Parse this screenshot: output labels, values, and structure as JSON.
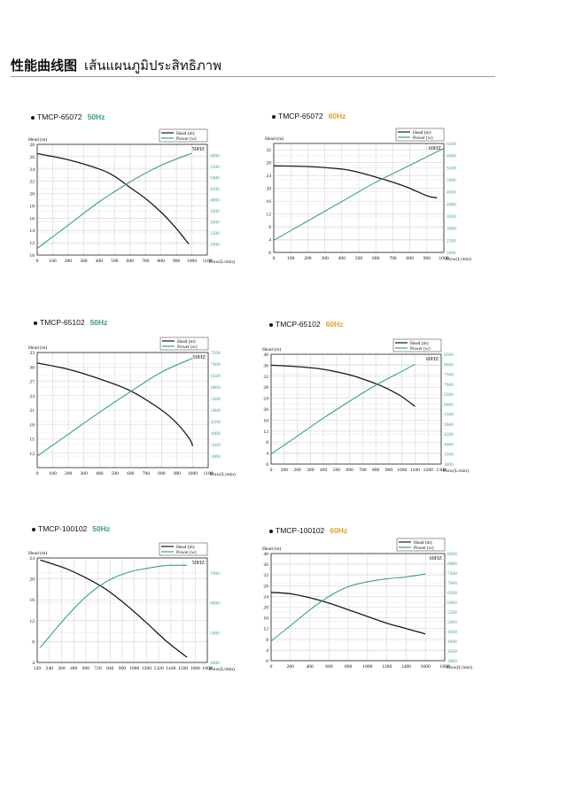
{
  "page": {
    "title_cn": "性能曲线图",
    "title_th": "เส้นแผนภูมิประสิทธิภาพ"
  },
  "colors": {
    "head": "#1a1a1a",
    "power": "#3a9e94",
    "hz50": "#3a9e78",
    "hz60": "#e3a02b",
    "grid": "#d4d4d4"
  },
  "chart_data": [
    {
      "type": "line",
      "model": "TMCP-65072",
      "freq": "50Hz",
      "hz_color": "#3a9e78",
      "freq_box": "50HZ",
      "xlabel": "Flow(L/min)",
      "ylabel": "Head (m)",
      "legend": [
        "Head (m)",
        "Power (w)"
      ],
      "xlim": [
        0,
        1100
      ],
      "xticks": [
        0,
        100,
        200,
        300,
        400,
        500,
        600,
        700,
        800,
        900,
        1000,
        1100
      ],
      "ylim": [
        10,
        28
      ],
      "yticks": [
        10,
        12,
        14,
        16,
        18,
        20,
        22,
        24,
        26,
        28
      ],
      "y2lim": [
        1500,
        6500
      ],
      "y2ticks": [
        2000,
        2500,
        3000,
        3500,
        4000,
        4500,
        5000,
        5500,
        6000
      ],
      "series": [
        {
          "name": "Head (m)",
          "axis": "left",
          "x": [
            0,
            200,
            400,
            500,
            600,
            700,
            800,
            900,
            980
          ],
          "y": [
            26.5,
            25.5,
            24,
            22.8,
            21,
            19.2,
            17,
            14.3,
            11.8
          ]
        },
        {
          "name": "Power (w)",
          "axis": "right",
          "x": [
            0,
            200,
            400,
            600,
            800,
            1000
          ],
          "y": [
            1800,
            2850,
            3900,
            4800,
            5550,
            6100
          ]
        }
      ]
    },
    {
      "type": "line",
      "model": "TMCP-65072",
      "freq": "60Hz",
      "hz_color": "#e3a02b",
      "freq_box": "60HZ",
      "xlabel": "Flow(L/min)",
      "ylabel": "Head (m)",
      "legend": [
        "Head (m)",
        "Power (w)"
      ],
      "xlim": [
        0,
        1000
      ],
      "xticks": [
        0,
        100,
        200,
        300,
        400,
        500,
        600,
        700,
        800,
        900,
        1000
      ],
      "ylim": [
        0,
        34
      ],
      "yticks": [
        0,
        4,
        8,
        12,
        16,
        20,
        24,
        28,
        32
      ],
      "y2lim": [
        2000,
        6500
      ],
      "y2ticks": [
        2000,
        2500,
        3000,
        3500,
        4000,
        4500,
        5000,
        5500,
        6000,
        6500
      ],
      "series": [
        {
          "name": "Head (m)",
          "axis": "left",
          "x": [
            0,
            200,
            400,
            500,
            600,
            700,
            800,
            900,
            960
          ],
          "y": [
            27,
            26.8,
            26,
            25,
            23.5,
            21.9,
            20,
            17.7,
            17
          ]
        },
        {
          "name": "Power (w)",
          "axis": "right",
          "x": [
            0,
            200,
            400,
            600,
            800,
            1000
          ],
          "y": [
            2500,
            3300,
            4100,
            4900,
            5600,
            6300
          ]
        }
      ]
    },
    {
      "type": "line",
      "model": "TMCP-65102",
      "freq": "50Hz",
      "hz_color": "#3a9e78",
      "freq_box": "50HZ",
      "xlabel": "Flow(L/min)",
      "ylabel": "Head (m)",
      "legend": [
        "Head (m)",
        "Power (w)"
      ],
      "xlim": [
        0,
        1100
      ],
      "xticks": [
        0,
        100,
        200,
        300,
        400,
        500,
        600,
        700,
        800,
        900,
        1000,
        1100
      ],
      "ylim": [
        9,
        33
      ],
      "yticks": [
        12,
        15,
        18,
        21,
        24,
        27,
        30,
        33
      ],
      "y2lim": [
        2500,
        7500
      ],
      "y2ticks": [
        3000,
        3500,
        4000,
        4500,
        5000,
        5500,
        6000,
        6500,
        7000,
        7500
      ],
      "series": [
        {
          "name": "Head (m)",
          "axis": "left",
          "x": [
            0,
            200,
            400,
            600,
            800,
            900,
            980,
            1000
          ],
          "y": [
            30.8,
            29.5,
            27.5,
            25,
            21,
            18.2,
            15,
            13.5
          ]
        },
        {
          "name": "Power (w)",
          "axis": "right",
          "x": [
            0,
            200,
            400,
            600,
            800,
            1000
          ],
          "y": [
            3000,
            3950,
            4900,
            5800,
            6650,
            7250
          ]
        }
      ]
    },
    {
      "type": "line",
      "model": "TMCP-65102",
      "freq": "60Hz",
      "hz_color": "#e3a02b",
      "freq_box": "60HZ",
      "xlabel": "Flow(L/min)",
      "ylabel": "Head (m)",
      "legend": [
        "Head (m)",
        "Power (w)"
      ],
      "xlim": [
        0,
        1300
      ],
      "xticks": [
        0,
        100,
        200,
        300,
        400,
        500,
        600,
        700,
        800,
        900,
        1000,
        1100,
        1200,
        1300
      ],
      "ylim": [
        0,
        40
      ],
      "yticks": [
        0,
        4,
        8,
        12,
        16,
        20,
        24,
        28,
        32,
        36,
        40
      ],
      "y2lim": [
        3000,
        8500
      ],
      "y2ticks": [
        3000,
        3500,
        4000,
        4500,
        5000,
        5500,
        6000,
        6500,
        7000,
        7500,
        8000,
        8500
      ],
      "series": [
        {
          "name": "Head (m)",
          "axis": "left",
          "x": [
            0,
            200,
            400,
            600,
            700,
            800,
            900,
            1000,
            1100
          ],
          "y": [
            36,
            35.5,
            34.5,
            32.5,
            31,
            29.3,
            27.2,
            24.5,
            21
          ]
        },
        {
          "name": "Power (w)",
          "axis": "right",
          "x": [
            0,
            200,
            400,
            600,
            800,
            1000,
            1100
          ],
          "y": [
            3500,
            4400,
            5300,
            6150,
            6950,
            7650,
            8000
          ]
        }
      ]
    },
    {
      "type": "line",
      "model": "TMCP-100102",
      "freq": "50Hz",
      "hz_color": "#3a9e78",
      "freq_box": "50HZ",
      "xlabel": "Flow(L/min)",
      "ylabel": "Head (m)",
      "legend": [
        "Head (m)",
        "Power (w)"
      ],
      "xlim": [
        120,
        1800
      ],
      "xticks": [
        120,
        240,
        360,
        480,
        600,
        720,
        840,
        960,
        1080,
        1200,
        1320,
        1440,
        1560,
        1680,
        1800
      ],
      "ylim": [
        4,
        24
      ],
      "yticks": [
        4,
        8,
        12,
        16,
        20,
        24
      ],
      "y2lim": [
        4000,
        7500
      ],
      "y2ticks": [
        4000,
        5000,
        6000,
        7000
      ],
      "series": [
        {
          "name": "Head (m)",
          "axis": "left",
          "x": [
            150,
            400,
            600,
            800,
            1000,
            1200,
            1400,
            1600
          ],
          "y": [
            23.6,
            22,
            20.2,
            18,
            15,
            11.6,
            8,
            5
          ]
        },
        {
          "name": "Power (w)",
          "axis": "right",
          "x": [
            150,
            400,
            600,
            800,
            1000,
            1200,
            1400,
            1600
          ],
          "y": [
            4500,
            5500,
            6200,
            6700,
            7000,
            7150,
            7250,
            7250
          ]
        }
      ]
    },
    {
      "type": "line",
      "model": "TMCP-100102",
      "freq": "60Hz",
      "hz_color": "#e3a02b",
      "freq_box": "60HZ",
      "xlabel": "Flow(L/min)",
      "ylabel": "Head (m)",
      "legend": [
        "Head (m)",
        "Power (w)"
      ],
      "xlim": [
        0,
        1800
      ],
      "xticks": [
        0,
        200,
        400,
        600,
        800,
        1000,
        1200,
        1400,
        1600,
        1800
      ],
      "ylim": [
        0,
        40
      ],
      "yticks": [
        0,
        4,
        8,
        12,
        16,
        20,
        24,
        28,
        32,
        36,
        40
      ],
      "y2lim": [
        3000,
        8500
      ],
      "y2ticks": [
        3000,
        3500,
        4000,
        4500,
        5000,
        5500,
        6000,
        6500,
        7000,
        7500,
        8000,
        8500
      ],
      "series": [
        {
          "name": "Head (m)",
          "axis": "left",
          "x": [
            0,
            200,
            400,
            600,
            800,
            1000,
            1200,
            1400,
            1600
          ],
          "y": [
            25.5,
            25,
            23.5,
            21.5,
            19,
            16.5,
            14,
            12,
            10
          ]
        },
        {
          "name": "Power (w)",
          "axis": "right",
          "x": [
            0,
            200,
            400,
            600,
            800,
            1000,
            1200,
            1400,
            1600
          ],
          "y": [
            4000,
            4800,
            5600,
            6300,
            6800,
            7050,
            7200,
            7300,
            7450
          ]
        }
      ]
    }
  ]
}
